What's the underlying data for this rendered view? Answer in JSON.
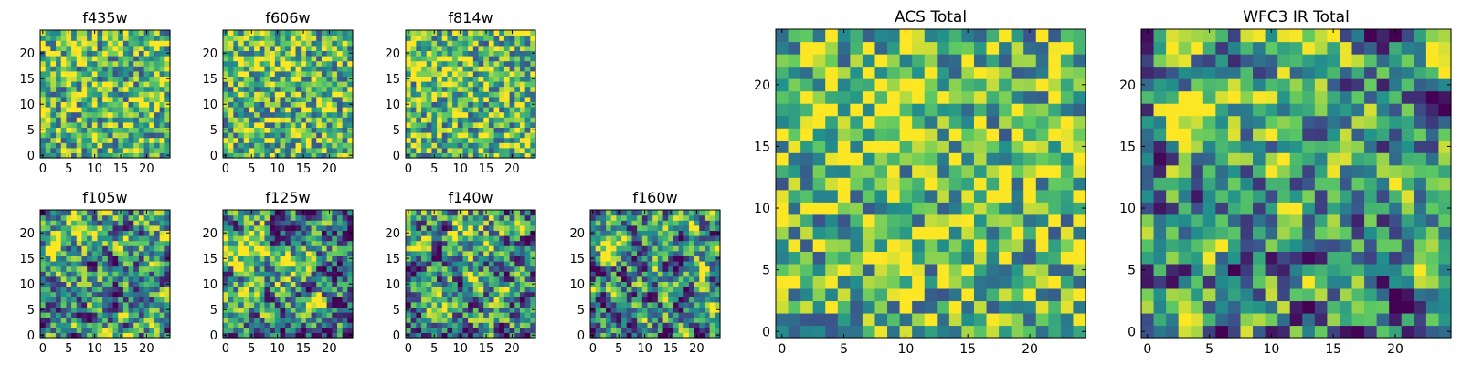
{
  "figure": {
    "background": "#ffffff"
  },
  "chart_data": [
    {
      "type": "heatmap",
      "title": "f435w",
      "grid_size": 25,
      "xlim": [
        0,
        24
      ],
      "ylim": [
        0,
        24
      ],
      "xticks": [
        "0",
        "5",
        "10",
        "15",
        "20"
      ],
      "yticks": [
        "0",
        "5",
        "10",
        "15",
        "20"
      ],
      "colormap": "viridis",
      "colormap_stops": [
        "#440154",
        "#3b528b",
        "#21918c",
        "#5ec962",
        "#fde725"
      ],
      "pattern": "noise",
      "sources": [],
      "seed": 11
    },
    {
      "type": "heatmap",
      "title": "f606w",
      "grid_size": 25,
      "xlim": [
        0,
        24
      ],
      "ylim": [
        0,
        24
      ],
      "xticks": [
        "0",
        "5",
        "10",
        "15",
        "20"
      ],
      "yticks": [
        "0",
        "5",
        "10",
        "15",
        "20"
      ],
      "colormap": "viridis",
      "colormap_stops": [
        "#440154",
        "#3b528b",
        "#21918c",
        "#5ec962",
        "#fde725"
      ],
      "pattern": "noise",
      "sources": [
        {
          "x": 10,
          "y": 19,
          "peak": 0.15,
          "sigma": 3
        }
      ],
      "seed": 23
    },
    {
      "type": "heatmap",
      "title": "f814w",
      "grid_size": 25,
      "xlim": [
        0,
        24
      ],
      "ylim": [
        0,
        24
      ],
      "xticks": [
        "0",
        "5",
        "10",
        "15",
        "20"
      ],
      "yticks": [
        "0",
        "5",
        "10",
        "15",
        "20"
      ],
      "colormap": "viridis",
      "colormap_stops": [
        "#440154",
        "#3b528b",
        "#21918c",
        "#5ec962",
        "#fde725"
      ],
      "pattern": "noise",
      "sources": [
        {
          "x": 2,
          "y": 17,
          "peak": 0.3,
          "sigma": 1.5
        },
        {
          "x": 8,
          "y": 19,
          "peak": 0.2,
          "sigma": 2.5
        }
      ],
      "seed": 37
    },
    {
      "type": "heatmap",
      "title": "f105w",
      "grid_size": 25,
      "xlim": [
        0,
        24
      ],
      "ylim": [
        0,
        24
      ],
      "xticks": [
        "0",
        "5",
        "10",
        "15",
        "20"
      ],
      "yticks": [
        "0",
        "5",
        "10",
        "15",
        "20"
      ],
      "colormap": "viridis",
      "colormap_stops": [
        "#440154",
        "#3b528b",
        "#21918c",
        "#5ec962",
        "#fde725"
      ],
      "pattern": "smooth",
      "sources": [
        {
          "x": 2,
          "y": 17,
          "peak": 0.5,
          "sigma": 1.8
        },
        {
          "x": 9,
          "y": 20,
          "peak": 0.3,
          "sigma": 2.5
        }
      ],
      "seed": 41
    },
    {
      "type": "heatmap",
      "title": "f125w",
      "grid_size": 25,
      "xlim": [
        0,
        24
      ],
      "ylim": [
        0,
        24
      ],
      "xticks": [
        "0",
        "5",
        "10",
        "15",
        "20"
      ],
      "yticks": [
        "0",
        "5",
        "10",
        "15",
        "20"
      ],
      "colormap": "viridis",
      "colormap_stops": [
        "#440154",
        "#3b528b",
        "#21918c",
        "#5ec962",
        "#fde725"
      ],
      "pattern": "smooth",
      "sources": [
        {
          "x": 3,
          "y": 17,
          "peak": 0.5,
          "sigma": 2
        },
        {
          "x": 13,
          "y": 13,
          "peak": 0.25,
          "sigma": 2
        }
      ],
      "seed": 53
    },
    {
      "type": "heatmap",
      "title": "f140w",
      "grid_size": 25,
      "xlim": [
        0,
        24
      ],
      "ylim": [
        0,
        24
      ],
      "xticks": [
        "0",
        "5",
        "10",
        "15",
        "20"
      ],
      "yticks": [
        "0",
        "5",
        "10",
        "15",
        "20"
      ],
      "colormap": "viridis",
      "colormap_stops": [
        "#440154",
        "#3b528b",
        "#21918c",
        "#5ec962",
        "#fde725"
      ],
      "pattern": "smooth",
      "sources": [
        {
          "x": 2,
          "y": 17,
          "peak": 0.55,
          "sigma": 1.8
        },
        {
          "x": 12,
          "y": 19,
          "peak": 0.2,
          "sigma": 3
        }
      ],
      "seed": 67
    },
    {
      "type": "heatmap",
      "title": "f160w",
      "grid_size": 25,
      "xlim": [
        0,
        24
      ],
      "ylim": [
        0,
        24
      ],
      "xticks": [
        "0",
        "5",
        "10",
        "15",
        "20"
      ],
      "yticks": [
        "0",
        "5",
        "10",
        "15",
        "20"
      ],
      "colormap": "viridis",
      "colormap_stops": [
        "#440154",
        "#3b528b",
        "#21918c",
        "#5ec962",
        "#fde725"
      ],
      "pattern": "smooth",
      "sources": [
        {
          "x": 3,
          "y": 17,
          "peak": 0.6,
          "sigma": 1.5
        }
      ],
      "seed": 79
    },
    {
      "type": "heatmap",
      "title": "ACS Total",
      "grid_size": 25,
      "xlim": [
        0,
        24
      ],
      "ylim": [
        0,
        24
      ],
      "xticks": [
        "0",
        "5",
        "10",
        "15",
        "20"
      ],
      "yticks": [
        "0",
        "5",
        "10",
        "15",
        "20"
      ],
      "colormap": "viridis",
      "colormap_stops": [
        "#440154",
        "#3b528b",
        "#21918c",
        "#5ec962",
        "#fde725"
      ],
      "pattern": "noise",
      "sources": [
        {
          "x": 9,
          "y": 19,
          "peak": 0.3,
          "sigma": 2.5
        },
        {
          "x": 2,
          "y": 17,
          "peak": 0.25,
          "sigma": 1.2
        }
      ],
      "seed": 97
    },
    {
      "type": "heatmap",
      "title": "WFC3 IR Total",
      "grid_size": 25,
      "xlim": [
        0,
        24
      ],
      "ylim": [
        0,
        24
      ],
      "xticks": [
        "0",
        "5",
        "10",
        "15",
        "20"
      ],
      "yticks": [
        "0",
        "5",
        "10",
        "15",
        "20"
      ],
      "colormap": "viridis",
      "colormap_stops": [
        "#440154",
        "#3b528b",
        "#21918c",
        "#5ec962",
        "#fde725"
      ],
      "pattern": "smooth",
      "sources": [
        {
          "x": 3,
          "y": 17,
          "peak": 0.55,
          "sigma": 1.8
        },
        {
          "x": 10,
          "y": 20,
          "peak": 0.25,
          "sigma": 3
        }
      ],
      "seed": 113
    }
  ]
}
